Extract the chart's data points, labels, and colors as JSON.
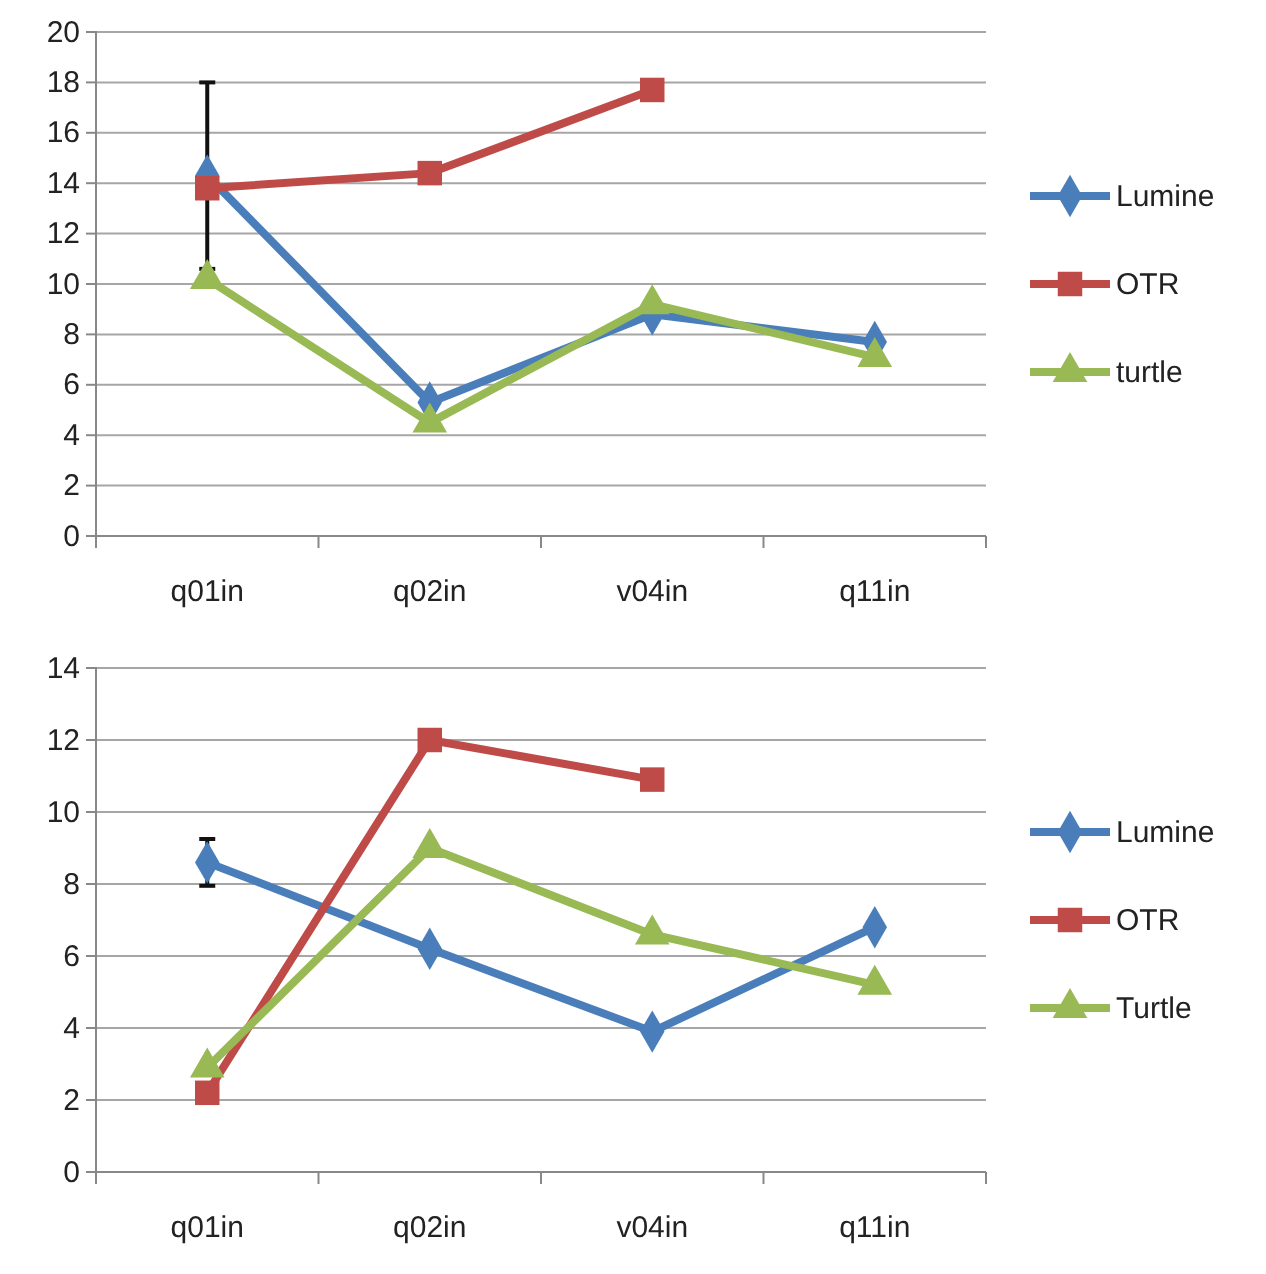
{
  "chart_data": [
    {
      "type": "line",
      "categories": [
        "q01in",
        "q02in",
        "v04in",
        "q11in"
      ],
      "ylim": [
        0,
        20
      ],
      "yticks": [
        0,
        2,
        4,
        6,
        8,
        10,
        12,
        14,
        16,
        18,
        20
      ],
      "grid": "y",
      "legend": "right",
      "series": [
        {
          "name": "Lumine",
          "color": "#4a7ebb",
          "marker": "diamond",
          "values": [
            14.3,
            5.3,
            8.8,
            7.7
          ],
          "errors": [
            3.7,
            null,
            null,
            null
          ]
        },
        {
          "name": "OTR",
          "color": "#be4b48",
          "marker": "square",
          "values": [
            13.8,
            14.4,
            17.7,
            null
          ]
        },
        {
          "name": "turtle",
          "color": "#98b954",
          "marker": "triangle",
          "values": [
            10.2,
            4.5,
            9.2,
            7.1
          ]
        }
      ]
    },
    {
      "type": "line",
      "categories": [
        "q01in",
        "q02in",
        "v04in",
        "q11in"
      ],
      "ylim": [
        0,
        14
      ],
      "yticks": [
        0,
        2,
        4,
        6,
        8,
        10,
        12,
        14
      ],
      "grid": "y",
      "legend": "right",
      "series": [
        {
          "name": "Lumine",
          "color": "#4a7ebb",
          "marker": "diamond",
          "values": [
            8.6,
            6.2,
            3.9,
            6.8
          ],
          "errors": [
            0.65,
            null,
            null,
            null
          ]
        },
        {
          "name": "OTR",
          "color": "#be4b48",
          "marker": "square",
          "values": [
            2.2,
            12.0,
            10.9,
            null
          ]
        },
        {
          "name": "Turtle",
          "color": "#98b954",
          "marker": "triangle",
          "values": [
            2.9,
            9.0,
            6.6,
            5.2
          ]
        }
      ]
    }
  ]
}
